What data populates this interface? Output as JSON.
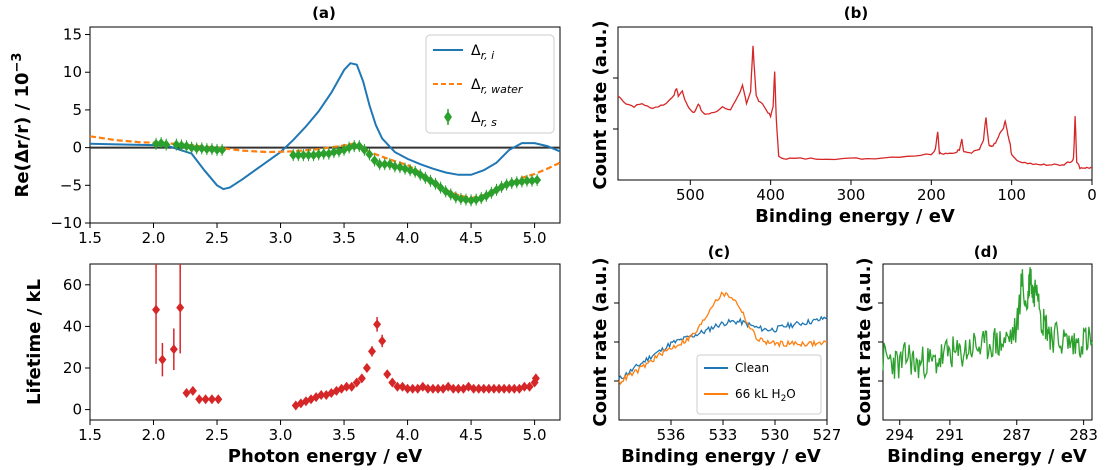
{
  "chart_data": [
    {
      "panel": "(a)",
      "type": "line",
      "title": "(a)",
      "xlabel": "",
      "ylabel": "Re(Δr/r) / 10⁻³",
      "xlim": [
        1.5,
        5.2
      ],
      "ylim": [
        -10,
        16
      ],
      "xticks": [
        1.5,
        2.0,
        2.5,
        3.0,
        3.5,
        4.0,
        4.5,
        5.0
      ],
      "yticks": [
        -10,
        -5,
        0,
        5,
        10,
        15
      ],
      "legend_position": "top-right",
      "zero_line": true,
      "series": [
        {
          "name": "Δr, i",
          "style": "solid",
          "color": "#1f77b4",
          "x": [
            1.5,
            1.8,
            2.1,
            2.3,
            2.4,
            2.5,
            2.55,
            2.6,
            2.7,
            2.8,
            2.9,
            3.0,
            3.1,
            3.2,
            3.3,
            3.4,
            3.5,
            3.55,
            3.6,
            3.65,
            3.7,
            3.75,
            3.8,
            3.9,
            4.0,
            4.1,
            4.2,
            4.3,
            4.4,
            4.5,
            4.6,
            4.7,
            4.8,
            4.9,
            5.0,
            5.1,
            5.2
          ],
          "y": [
            0.5,
            0.4,
            0.3,
            -0.8,
            -3.0,
            -5.0,
            -5.5,
            -5.3,
            -4.2,
            -3.0,
            -1.8,
            -0.6,
            1.0,
            2.8,
            4.8,
            7.3,
            10.3,
            11.2,
            11.0,
            8.8,
            5.6,
            3.0,
            1.2,
            -0.6,
            -1.5,
            -2.2,
            -2.8,
            -3.3,
            -3.6,
            -3.6,
            -3.0,
            -2.0,
            -0.3,
            0.6,
            0.6,
            0.2,
            -0.5
          ]
        },
        {
          "name": "Δr, water",
          "style": "dashed",
          "color": "#ff7f0e",
          "x": [
            1.5,
            1.7,
            1.9,
            2.1,
            2.3,
            2.5,
            2.7,
            2.9,
            3.1,
            3.3,
            3.5,
            3.6,
            3.7,
            3.8,
            3.9,
            4.0,
            4.1,
            4.2,
            4.3,
            4.4,
            4.5,
            4.6,
            4.7,
            4.8,
            4.9,
            5.0,
            5.1,
            5.2
          ],
          "y": [
            1.5,
            1.0,
            0.7,
            0.6,
            0.3,
            0.0,
            -0.4,
            -0.6,
            -0.5,
            -0.2,
            0.3,
            0.6,
            -0.6,
            -1.2,
            -1.8,
            -2.3,
            -3.3,
            -4.5,
            -5.6,
            -6.3,
            -6.7,
            -6.3,
            -5.6,
            -4.8,
            -4.0,
            -3.5,
            -2.8,
            -2.0
          ]
        },
        {
          "name": "Δr, s",
          "style": "markers",
          "color": "#2ca02c",
          "x": [
            2.02,
            2.06,
            2.1,
            2.18,
            2.22,
            2.26,
            2.3,
            2.34,
            2.38,
            2.42,
            2.46,
            2.5,
            2.54,
            3.1,
            3.14,
            3.18,
            3.22,
            3.26,
            3.3,
            3.34,
            3.38,
            3.42,
            3.46,
            3.5,
            3.54,
            3.58,
            3.62,
            3.66,
            3.7,
            3.74,
            3.78,
            3.82,
            3.86,
            3.9,
            3.94,
            3.98,
            4.02,
            4.06,
            4.1,
            4.14,
            4.18,
            4.22,
            4.26,
            4.3,
            4.34,
            4.38,
            4.42,
            4.46,
            4.5,
            4.54,
            4.58,
            4.62,
            4.66,
            4.7,
            4.74,
            4.78,
            4.82,
            4.86,
            4.9,
            4.94,
            4.98,
            5.02
          ],
          "y": [
            0.5,
            0.6,
            0.4,
            0.4,
            0.3,
            0.2,
            0.0,
            -0.1,
            -0.1,
            -0.2,
            -0.2,
            -0.3,
            -0.3,
            -1.0,
            -1.0,
            -1.0,
            -1.0,
            -1.0,
            -0.9,
            -0.8,
            -0.8,
            -0.6,
            -0.5,
            -0.3,
            0.0,
            0.2,
            0.2,
            -0.3,
            -0.9,
            -1.7,
            -2.2,
            -2.2,
            -2.2,
            -2.5,
            -2.6,
            -2.8,
            -3.0,
            -3.2,
            -3.6,
            -4.0,
            -4.4,
            -4.8,
            -5.3,
            -5.8,
            -6.2,
            -6.6,
            -6.8,
            -6.9,
            -7.0,
            -6.9,
            -6.7,
            -6.4,
            -6.0,
            -5.6,
            -5.2,
            -4.9,
            -4.7,
            -4.6,
            -4.5,
            -4.4,
            -4.4,
            -4.3
          ]
        }
      ]
    },
    {
      "panel": "lifetime",
      "type": "scatter",
      "title": "",
      "xlabel": "Photon energy / eV",
      "ylabel": "Lifetime / kL",
      "xlim": [
        1.5,
        5.2
      ],
      "ylim": [
        -5,
        70
      ],
      "xticks": [
        1.5,
        2.0,
        2.5,
        3.0,
        3.5,
        4.0,
        4.5,
        5.0
      ],
      "yticks": [
        0,
        20,
        40,
        60
      ],
      "color": "#d62728",
      "x": [
        2.02,
        2.07,
        2.16,
        2.21,
        2.26,
        2.31,
        2.36,
        2.41,
        2.46,
        2.51,
        3.12,
        3.16,
        3.2,
        3.24,
        3.28,
        3.32,
        3.36,
        3.4,
        3.44,
        3.48,
        3.52,
        3.56,
        3.6,
        3.64,
        3.68,
        3.72,
        3.76,
        3.8,
        3.84,
        3.88,
        3.92,
        3.96,
        4.0,
        4.04,
        4.08,
        4.12,
        4.16,
        4.2,
        4.24,
        4.28,
        4.32,
        4.36,
        4.4,
        4.44,
        4.48,
        4.52,
        4.56,
        4.6,
        4.64,
        4.68,
        4.72,
        4.76,
        4.8,
        4.84,
        4.88,
        4.92,
        4.96,
        5.0,
        5.01
      ],
      "y": [
        48,
        24,
        29,
        49,
        8,
        9,
        5,
        5,
        5,
        5,
        2,
        3,
        4,
        5,
        6,
        7,
        7,
        8,
        9,
        10,
        11,
        11,
        13,
        15,
        20,
        28,
        41,
        33,
        17,
        13,
        11,
        11,
        10,
        10,
        10,
        11,
        10,
        10,
        10,
        10,
        11,
        10,
        10,
        10,
        11,
        10,
        10,
        10,
        10,
        10,
        10,
        10,
        10,
        10,
        10,
        11,
        11,
        13,
        15
      ],
      "yerr": [
        26,
        8,
        10,
        22,
        1.5,
        1.5,
        1,
        1,
        1,
        1,
        1,
        1,
        1,
        1,
        1,
        1,
        1,
        1,
        1,
        1,
        1,
        1,
        1.2,
        1.5,
        2,
        2.5,
        3.5,
        3,
        2,
        1.5,
        1,
        1,
        1,
        1,
        1,
        1,
        1,
        1,
        1,
        1,
        1,
        1,
        1,
        1,
        1,
        1,
        1,
        1,
        1,
        1,
        1,
        1,
        1,
        1,
        1,
        1,
        1,
        1.5,
        2
      ]
    },
    {
      "panel": "(b)",
      "type": "line",
      "title": "(b)",
      "xlabel": "Binding energy / eV",
      "ylabel": "Count rate (a.u.)",
      "xlim": [
        590,
        0
      ],
      "xticks": [
        500,
        400,
        300,
        200,
        100,
        0
      ],
      "color": "#d62728",
      "x": [
        590,
        580,
        570,
        560,
        550,
        540,
        530,
        520,
        517,
        515,
        510,
        505,
        500,
        495,
        490,
        485,
        480,
        470,
        460,
        450,
        440,
        435,
        430,
        425,
        422,
        420,
        418,
        415,
        410,
        405,
        400,
        397,
        395,
        393,
        390,
        380,
        370,
        350,
        330,
        300,
        280,
        250,
        220,
        200,
        195,
        192,
        190,
        187,
        180,
        170,
        165,
        162,
        160,
        158,
        150,
        140,
        135,
        132,
        130,
        128,
        125,
        120,
        115,
        110,
        108,
        106,
        104,
        102,
        100,
        90,
        80,
        70,
        60,
        50,
        40,
        35,
        30,
        25,
        23,
        21,
        19,
        15,
        10,
        5,
        0
      ],
      "y": [
        0.55,
        0.5,
        0.48,
        0.5,
        0.47,
        0.48,
        0.5,
        0.56,
        0.6,
        0.55,
        0.58,
        0.5,
        0.46,
        0.44,
        0.5,
        0.44,
        0.43,
        0.44,
        0.48,
        0.46,
        0.55,
        0.62,
        0.5,
        0.58,
        0.88,
        0.7,
        0.55,
        0.52,
        0.5,
        0.45,
        0.42,
        0.48,
        0.71,
        0.4,
        0.15,
        0.14,
        0.14,
        0.14,
        0.14,
        0.14,
        0.14,
        0.15,
        0.16,
        0.17,
        0.2,
        0.32,
        0.18,
        0.17,
        0.17,
        0.18,
        0.2,
        0.27,
        0.19,
        0.18,
        0.18,
        0.2,
        0.26,
        0.41,
        0.3,
        0.22,
        0.22,
        0.24,
        0.3,
        0.34,
        0.39,
        0.33,
        0.28,
        0.24,
        0.16,
        0.12,
        0.11,
        0.1,
        0.1,
        0.1,
        0.1,
        0.1,
        0.12,
        0.12,
        0.14,
        0.42,
        0.12,
        0.08,
        0.08,
        0.08,
        0.08
      ]
    },
    {
      "panel": "(c)",
      "type": "line",
      "title": "(c)",
      "xlabel": "Binding energy / eV",
      "ylabel": "Count rate (a.u.)",
      "xlim": [
        539,
        527
      ],
      "xticks": [
        536,
        533,
        530,
        527
      ],
      "legend_position": "bottom-right",
      "series": [
        {
          "name": "Clean",
          "color": "#1f77b4",
          "x": [
            539,
            538.5,
            538,
            537.5,
            537,
            536.5,
            536,
            535.5,
            535,
            534.5,
            534,
            533.5,
            533,
            532.5,
            532,
            531.5,
            531,
            530.5,
            530,
            529.5,
            529,
            528.5,
            528,
            527.5,
            527
          ],
          "y": [
            0.26,
            0.3,
            0.34,
            0.38,
            0.42,
            0.45,
            0.49,
            0.51,
            0.53,
            0.55,
            0.57,
            0.6,
            0.62,
            0.63,
            0.63,
            0.61,
            0.59,
            0.58,
            0.58,
            0.6,
            0.61,
            0.62,
            0.63,
            0.64,
            0.66
          ]
        },
        {
          "name": "66 kL H₂O",
          "color": "#ff7f0e",
          "x": [
            539,
            538.5,
            538,
            537.5,
            537,
            536.5,
            536,
            535.5,
            535,
            534.5,
            534,
            533.5,
            533,
            532.5,
            532,
            531.5,
            531,
            530.5,
            530,
            529.5,
            529,
            528.5,
            528,
            527.5,
            527
          ],
          "y": [
            0.24,
            0.28,
            0.31,
            0.35,
            0.39,
            0.43,
            0.46,
            0.49,
            0.52,
            0.57,
            0.66,
            0.76,
            0.81,
            0.79,
            0.72,
            0.6,
            0.52,
            0.5,
            0.49,
            0.49,
            0.49,
            0.49,
            0.49,
            0.49,
            0.5
          ]
        }
      ]
    },
    {
      "panel": "(d)",
      "type": "line",
      "title": "(d)",
      "xlabel": "Binding energy / eV",
      "ylabel": "Count rate (a.u.)",
      "xlim": [
        295,
        282.5
      ],
      "xticks": [
        294,
        291,
        287,
        283
      ],
      "color": "#2ca02c",
      "x": [
        295,
        294.5,
        294,
        293.5,
        293,
        292.5,
        292,
        291.5,
        291,
        290.5,
        290,
        289.5,
        289,
        288.5,
        288,
        287.5,
        287,
        286.7,
        286.4,
        286.2,
        286,
        285.8,
        285.5,
        285.2,
        285,
        284.5,
        284,
        283.5,
        283,
        282.5
      ],
      "y": [
        0.4,
        0.38,
        0.35,
        0.42,
        0.34,
        0.38,
        0.36,
        0.4,
        0.44,
        0.41,
        0.45,
        0.48,
        0.46,
        0.5,
        0.49,
        0.52,
        0.58,
        0.9,
        0.7,
        0.95,
        0.78,
        0.92,
        0.65,
        0.6,
        0.55,
        0.52,
        0.5,
        0.48,
        0.52,
        0.5
      ]
    }
  ],
  "legend_a": {
    "s1_main": "Δ",
    "s1_sub": "r, i",
    "s2_main": "Δ",
    "s2_sub": "r, water",
    "s3_main": "Δ",
    "s3_sub": "r, s"
  },
  "legend_c": {
    "clean": "Clean",
    "water_main": "66 kL H",
    "water_sub": "2",
    "water_end": "O"
  },
  "labels": {
    "a_title": "(a)",
    "b_title": "(b)",
    "c_title": "(c)",
    "d_title": "(d)",
    "a_ylabel_main": "Re(Δr/r) / 10",
    "a_ylabel_exp": "−3",
    "lt_ylabel": "Lifetime / kL",
    "lt_xlabel": "Photon energy / eV",
    "b_ylabel": "Count rate (a.u.)",
    "b_xlabel": "Binding energy / eV",
    "c_ylabel": "Count rate (a.u.)",
    "c_xlabel": "Binding energy / eV",
    "d_ylabel": "Count rate (a.u.)",
    "d_xlabel": "Binding energy / eV"
  },
  "colors": {
    "blue": "#1f77b4",
    "orange": "#ff7f0e",
    "green": "#2ca02c",
    "red": "#d62728"
  }
}
